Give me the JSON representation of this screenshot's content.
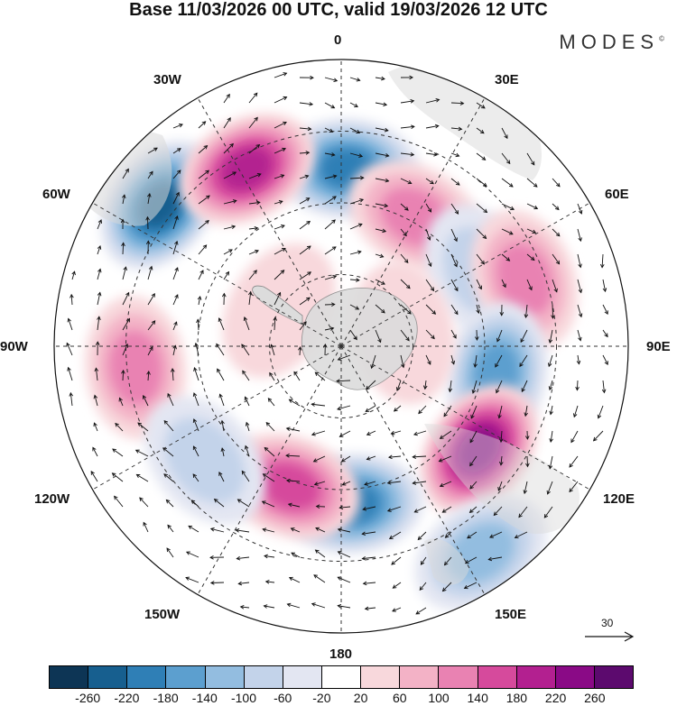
{
  "header": {
    "title": "Base 11/03/2026 00 UTC, valid 19/03/2026 12 UTC",
    "brand": "MODES",
    "brand_mark": "©"
  },
  "map": {
    "projection": "south-polar-stereographic",
    "longitude_labels": {
      "top": "0",
      "top_left": "30W",
      "top_right": "30E",
      "upper_left": "60W",
      "upper_right": "60E",
      "left": "90W",
      "right": "90E",
      "lower_left": "120W",
      "lower_right": "120E",
      "bottom_left": "150W",
      "bottom_right": "150E",
      "bottom": "180"
    },
    "vector_reference": "30"
  },
  "colorbar": {
    "ticks": [
      "-260",
      "-220",
      "-180",
      "-140",
      "-100",
      "-60",
      "-20",
      "20",
      "60",
      "100",
      "140",
      "180",
      "220",
      "260"
    ],
    "colors": [
      "#0d3555",
      "#175f8f",
      "#2f7fb6",
      "#5c9fcf",
      "#93bde0",
      "#c3d3ea",
      "#e3e6f2",
      "#ffffff",
      "#f8d8dc",
      "#f3b2c6",
      "#e982b2",
      "#d64a9c",
      "#b32090",
      "#8a0a86",
      "#5c0a6e"
    ]
  },
  "anomaly_blobs": [
    {
      "lon": 2,
      "dist": 0.62,
      "value": -200
    },
    {
      "lon": -52,
      "dist": 0.8,
      "value": -260
    },
    {
      "lon": -28,
      "dist": 0.7,
      "value": 220
    },
    {
      "lon": 30,
      "dist": 0.52,
      "value": 120
    },
    {
      "lon": 62,
      "dist": 0.55,
      "value": -100
    },
    {
      "lon": 70,
      "dist": 0.68,
      "value": 140
    },
    {
      "lon": 100,
      "dist": 0.55,
      "value": -160
    },
    {
      "lon": 127,
      "dist": 0.6,
      "value": 250
    },
    {
      "lon": 146,
      "dist": 0.87,
      "value": -120
    },
    {
      "lon": 176,
      "dist": 0.55,
      "value": -220
    },
    {
      "lon": -160,
      "dist": 0.52,
      "value": 180
    },
    {
      "lon": -96,
      "dist": 0.72,
      "value": 140
    },
    {
      "lon": -130,
      "dist": 0.62,
      "value": -80
    },
    {
      "lon": 78,
      "dist": 0.22,
      "value": 40
    },
    {
      "lon": -60,
      "dist": 0.25,
      "value": 30
    }
  ]
}
